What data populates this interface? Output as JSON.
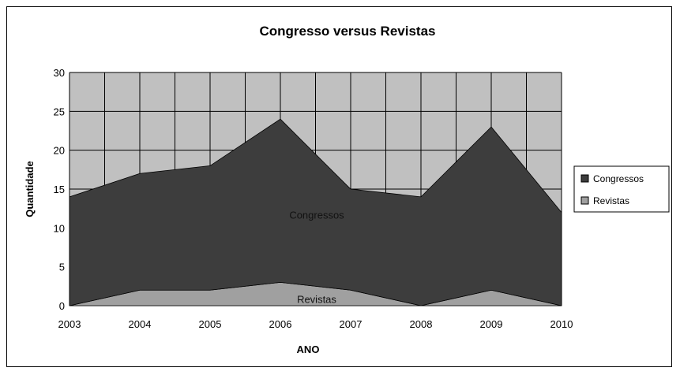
{
  "chart_data": {
    "type": "area",
    "stacked": true,
    "title": "Congresso versus Revistas",
    "xlabel": "ANO",
    "ylabel": "Quantidade",
    "ylim": [
      0,
      30
    ],
    "yticks": [
      "0",
      "5",
      "10",
      "15",
      "20",
      "25",
      "30"
    ],
    "categories": [
      "2003",
      "2004",
      "2005",
      "2006",
      "2007",
      "2008",
      "2009",
      "2010"
    ],
    "series": [
      {
        "name": "Revistas",
        "values": [
          0,
          2,
          2,
          3,
          2,
          0,
          2,
          0
        ],
        "color": "#a0a0a0"
      },
      {
        "name": "Congressos",
        "values": [
          14,
          15,
          16,
          21,
          13,
          14,
          21,
          12
        ],
        "color": "#3d3d3d"
      }
    ],
    "totals": [
      14,
      17,
      18,
      24,
      15,
      14,
      23,
      12
    ],
    "area_labels": [
      "Congressos",
      "Revistas"
    ],
    "legend": [
      "Congressos",
      "Revistas"
    ],
    "legend_position": "right",
    "grid": true,
    "plot_background": "#c0c0c0",
    "grid_color": "#000000"
  }
}
